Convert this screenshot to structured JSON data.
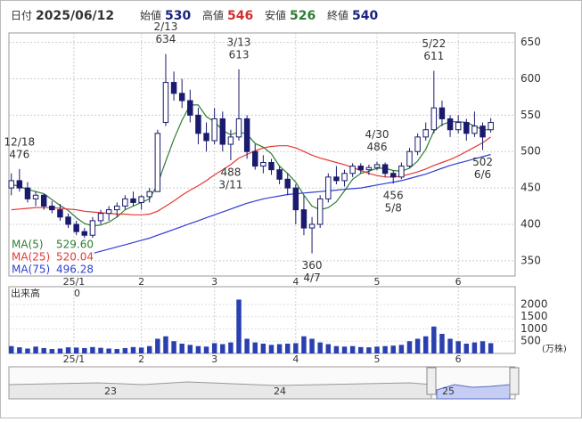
{
  "chart_data": {
    "type": "candlestick",
    "info": [
      {
        "label": "日付",
        "value": "2025/06/12",
        "color": "#333333"
      },
      {
        "label": "始値",
        "value": 530,
        "color": "#1a237e"
      },
      {
        "label": "高値",
        "value": 546,
        "color": "#d32f2f"
      },
      {
        "label": "安値",
        "value": 526,
        "color": "#2e7d32"
      },
      {
        "label": "終値",
        "value": 540,
        "color": "#1a237e"
      }
    ],
    "xlim": [
      -0.3,
      62
    ],
    "xticks": [
      {
        "value": 7.7,
        "label": "25/1"
      },
      {
        "value": 16,
        "label": "2"
      },
      {
        "value": 25,
        "label": "3"
      },
      {
        "value": 35,
        "label": "4"
      },
      {
        "value": 45,
        "label": "5"
      },
      {
        "value": 55,
        "label": "6"
      }
    ],
    "ylim": [
      329,
      663
    ],
    "yticks": [
      350,
      400,
      450,
      500,
      550,
      600,
      650
    ],
    "grid": true,
    "up_color": "#ffffff",
    "down_color": "#1a1a6e",
    "edge_color": "#1a1a6e",
    "candles": [
      [
        450,
        470,
        440,
        460
      ],
      [
        460,
        476,
        445,
        450
      ],
      [
        450,
        458,
        430,
        435
      ],
      [
        435,
        445,
        425,
        440
      ],
      [
        440,
        442,
        420,
        425
      ],
      [
        425,
        432,
        415,
        420
      ],
      [
        420,
        428,
        405,
        410
      ],
      [
        410,
        415,
        395,
        400
      ],
      [
        400,
        405,
        385,
        390
      ],
      [
        390,
        395,
        378,
        385
      ],
      [
        385,
        410,
        380,
        405
      ],
      [
        405,
        420,
        400,
        415
      ],
      [
        415,
        425,
        405,
        420
      ],
      [
        420,
        430,
        410,
        425
      ],
      [
        425,
        440,
        420,
        435
      ],
      [
        435,
        445,
        425,
        430
      ],
      [
        430,
        440,
        420,
        438
      ],
      [
        438,
        450,
        430,
        445
      ],
      [
        445,
        530,
        445,
        525
      ],
      [
        540,
        634,
        535,
        595
      ],
      [
        595,
        610,
        570,
        580
      ],
      [
        580,
        600,
        560,
        570
      ],
      [
        570,
        585,
        540,
        550
      ],
      [
        550,
        560,
        510,
        525
      ],
      [
        525,
        540,
        500,
        515
      ],
      [
        515,
        560,
        510,
        545
      ],
      [
        545,
        555,
        500,
        510
      ],
      [
        510,
        530,
        488,
        520
      ],
      [
        520,
        613,
        515,
        545
      ],
      [
        545,
        550,
        490,
        500
      ],
      [
        500,
        510,
        475,
        480
      ],
      [
        480,
        495,
        470,
        485
      ],
      [
        485,
        490,
        468,
        475
      ],
      [
        475,
        480,
        455,
        462
      ],
      [
        462,
        470,
        440,
        450
      ],
      [
        450,
        455,
        400,
        420
      ],
      [
        420,
        440,
        385,
        395
      ],
      [
        395,
        410,
        360,
        400
      ],
      [
        400,
        440,
        395,
        435
      ],
      [
        435,
        470,
        430,
        465
      ],
      [
        465,
        480,
        455,
        460
      ],
      [
        460,
        475,
        452,
        470
      ],
      [
        470,
        484,
        465,
        480
      ],
      [
        480,
        484,
        470,
        475
      ],
      [
        475,
        482,
        468,
        478
      ],
      [
        478,
        486,
        474,
        482
      ],
      [
        482,
        485,
        465,
        470
      ],
      [
        470,
        474,
        456,
        465
      ],
      [
        465,
        485,
        462,
        480
      ],
      [
        480,
        505,
        478,
        500
      ],
      [
        500,
        525,
        495,
        520
      ],
      [
        520,
        540,
        515,
        530
      ],
      [
        530,
        611,
        525,
        560
      ],
      [
        560,
        570,
        535,
        545
      ],
      [
        545,
        550,
        520,
        530
      ],
      [
        530,
        550,
        525,
        540
      ],
      [
        540,
        545,
        515,
        525
      ],
      [
        525,
        555,
        520,
        535
      ],
      [
        535,
        540,
        502,
        520
      ],
      [
        530,
        546,
        526,
        540
      ]
    ],
    "annotations": [
      {
        "label": "12/18",
        "value": 476
      },
      {
        "label": "2/13",
        "value": 634
      },
      {
        "label": "3/11",
        "value": 488
      },
      {
        "label": "3/13",
        "value": 613
      },
      {
        "label": "4/7",
        "value": 360
      },
      {
        "label": "4/30",
        "value": 486
      },
      {
        "label": "5/8",
        "value": 456
      },
      {
        "label": "5/22",
        "value": 611
      },
      {
        "label": "6/6",
        "value": 502
      }
    ],
    "series": [
      {
        "name": "MA(5)",
        "legend_value": "529.60",
        "color": "#2e7d32",
        "values": [
          455,
          452,
          448,
          445,
          442,
          434,
          426,
          419,
          409,
          401,
          398,
          399,
          403,
          410,
          420,
          425,
          430,
          435,
          455,
          487,
          517,
          543,
          564,
          564,
          548,
          541,
          529,
          523,
          527,
          524,
          511,
          506,
          497,
          480,
          470,
          458,
          440,
          425,
          420,
          423,
          431,
          446,
          462,
          470,
          473,
          477,
          477,
          474,
          473,
          477,
          487,
          503,
          528,
          537,
          541,
          541,
          540,
          535,
          530,
          530
        ]
      },
      {
        "name": "MA(25)",
        "legend_value": "520.04",
        "color": "#e53935",
        "values": [
          420,
          421,
          422,
          423,
          423,
          423,
          422,
          421,
          420,
          418,
          417,
          416,
          415,
          414,
          414,
          413,
          413,
          414,
          418,
          425,
          432,
          440,
          447,
          453,
          460,
          468,
          475,
          482,
          491,
          496,
          501,
          505,
          507,
          508,
          508,
          505,
          500,
          495,
          491,
          488,
          485,
          482,
          478,
          474,
          470,
          467,
          465,
          465,
          466,
          469,
          472,
          476,
          481,
          485,
          489,
          494,
          500,
          506,
          512,
          520
        ]
      },
      {
        "name": "MA(75)",
        "legend_value": "496.28",
        "color": "#2f3fd0",
        "values": [
          null,
          null,
          null,
          null,
          null,
          null,
          null,
          null,
          null,
          null,
          360,
          363,
          366,
          369,
          372,
          375,
          378,
          381,
          385,
          389,
          393,
          397,
          401,
          405,
          409,
          413,
          417,
          421,
          425,
          429,
          432,
          435,
          437,
          439,
          441,
          442,
          443,
          444,
          445,
          446,
          447,
          448,
          449,
          450,
          452,
          454,
          456,
          458,
          460,
          463,
          466,
          469,
          473,
          477,
          481,
          484,
          487,
          490,
          493,
          496
        ]
      }
    ],
    "volume": {
      "title": "出来高",
      "current": 0,
      "unit": "(万株)",
      "color": "#2a3fb0",
      "ylim": [
        0,
        2727
      ],
      "yticks": [
        500,
        1000,
        1500,
        2000
      ],
      "values": [
        300,
        250,
        200,
        280,
        220,
        180,
        200,
        250,
        240,
        220,
        260,
        230,
        200,
        180,
        220,
        260,
        240,
        300,
        600,
        700,
        500,
        400,
        350,
        300,
        280,
        420,
        380,
        450,
        2200,
        600,
        450,
        400,
        350,
        380,
        400,
        420,
        700,
        600,
        450,
        380,
        300,
        280,
        300,
        260,
        250,
        280,
        300,
        320,
        350,
        500,
        600,
        700,
        1100,
        800,
        600,
        500,
        400,
        450,
        500,
        420
      ]
    },
    "navigator_labels": [
      "23",
      "24",
      "25"
    ]
  }
}
